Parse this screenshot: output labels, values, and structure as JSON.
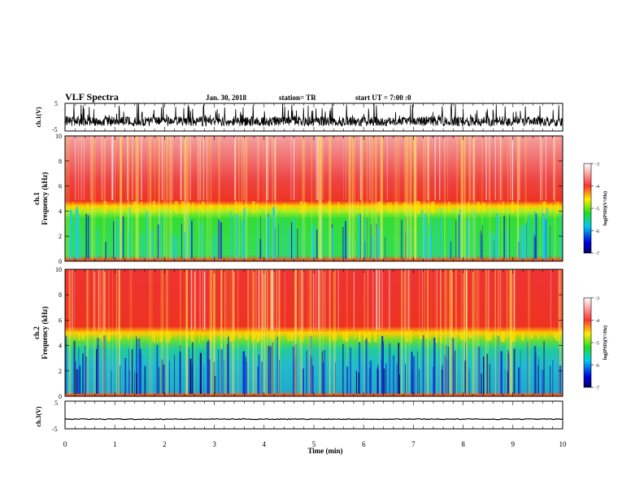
{
  "header": {
    "title": "VLF Spectra",
    "date": "Jan. 30, 2018",
    "station": "station= TR",
    "start": "start UT = 7:00 :0"
  },
  "colors": {
    "high": "#ee2222",
    "mid": "#ffdd00",
    "low_green": "#33dd33",
    "low_cyan": "#22ccdd",
    "lowest": "#1133cc",
    "trace": "#000000"
  },
  "chart_data": [
    {
      "type": "line",
      "name": "ch.1 waveform",
      "ylabel": "ch.1(V)",
      "ylim": [
        -5,
        5
      ],
      "ytick_labels": [
        "5",
        "-5"
      ],
      "xlim": [
        0,
        10
      ],
      "description_values": {
        "baseline": -1.5,
        "spike_max": 5,
        "spike_min": -3
      }
    },
    {
      "type": "heatmap",
      "name": "ch.1 spectrogram",
      "ylabel_top": "ch.1",
      "ylabel": "Frequency (kHz)",
      "ylim": [
        0,
        10
      ],
      "ytick_labels": [
        "0",
        "2",
        "4",
        "6",
        "8",
        "10"
      ],
      "xlim": [
        0,
        10
      ],
      "boundary_khz": 4.3,
      "colorbar": {
        "label": "log(PSD)(V²/Hz)",
        "ticks": [
          "-3",
          "-4",
          "-5",
          "-6",
          "-7"
        ],
        "range": [
          -7,
          -3
        ]
      }
    },
    {
      "type": "heatmap",
      "name": "ch.2 spectrogram",
      "ylabel_top": "ch.2",
      "ylabel": "Frequency (kHz)",
      "ylim": [
        0,
        10
      ],
      "ytick_labels": [
        "0",
        "2",
        "4",
        "6",
        "8",
        "10"
      ],
      "xlim": [
        0,
        10
      ],
      "boundary_khz": 4.7,
      "colorbar": {
        "label": "log(PSD)(V²/Hz)",
        "ticks": [
          "-3",
          "-4",
          "-5",
          "-6",
          "-7"
        ],
        "range": [
          -7,
          -3
        ]
      }
    },
    {
      "type": "line",
      "name": "ch.3 waveform",
      "ylabel": "ch.3(V)",
      "ylim": [
        -5,
        5
      ],
      "ytick_labels": [
        "5",
        "-5"
      ],
      "xlim": [
        0,
        10
      ],
      "description_values": {
        "baseline": -1.5
      },
      "xlabel": "Time (min)",
      "xtick_labels": [
        "0",
        "1",
        "2",
        "3",
        "4",
        "5",
        "6",
        "7",
        "8",
        "9",
        "10"
      ]
    }
  ]
}
